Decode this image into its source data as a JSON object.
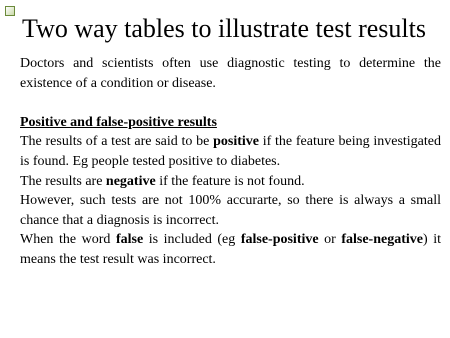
{
  "header": {
    "title": "Two way tables to illustrate test results"
  },
  "intro": "Doctors and scientists often use diagnostic testing to determine the existence of a condition or disease.",
  "section": {
    "heading": "Positive and false-positive results",
    "paragraphs": [
      {
        "runs": [
          {
            "text": "The results of a test are said to be "
          },
          {
            "text": "positive",
            "bold": true
          },
          {
            "text": " if the feature being investigated is found. Eg people tested positive to diabetes."
          }
        ]
      },
      {
        "runs": [
          {
            "text": "The results are "
          },
          {
            "text": "negative",
            "bold": true
          },
          {
            "text": " if the feature is not found."
          }
        ]
      },
      {
        "runs": [
          {
            "text": "However, such tests are not 100% accurarte, so there is always a small chance that a diagnosis is incorrect."
          }
        ]
      },
      {
        "runs": [
          {
            "text": "When the word "
          },
          {
            "text": "false",
            "bold": true
          },
          {
            "text": " is included (eg "
          },
          {
            "text": "false-positive",
            "bold": true
          },
          {
            "text": " or "
          },
          {
            "text": "false-negative",
            "bold": true
          },
          {
            "text": ") it means the test result was incorrect."
          }
        ]
      }
    ]
  }
}
